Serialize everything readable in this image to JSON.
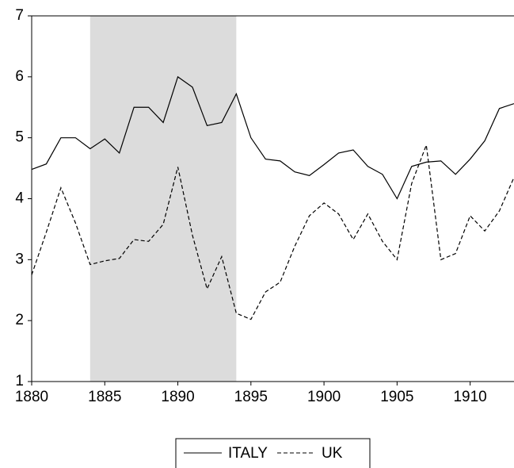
{
  "chart_data": {
    "type": "line",
    "x": [
      1880,
      1881,
      1882,
      1883,
      1884,
      1885,
      1886,
      1887,
      1888,
      1889,
      1890,
      1891,
      1892,
      1893,
      1894,
      1895,
      1896,
      1897,
      1898,
      1899,
      1900,
      1901,
      1902,
      1903,
      1904,
      1905,
      1906,
      1907,
      1908,
      1909,
      1910,
      1911,
      1912,
      1913
    ],
    "series": [
      {
        "name": "ITALY",
        "color": "#000000",
        "dash": "solid",
        "values": [
          4.48,
          4.57,
          5.0,
          5.0,
          4.82,
          4.98,
          4.75,
          5.5,
          5.5,
          5.25,
          6.0,
          5.83,
          5.2,
          5.25,
          5.72,
          5.0,
          4.65,
          4.62,
          4.44,
          4.38,
          4.56,
          4.75,
          4.8,
          4.53,
          4.4,
          4.0,
          4.53,
          4.6,
          4.62,
          4.4,
          4.65,
          4.95,
          5.48,
          5.56
        ]
      },
      {
        "name": "UK",
        "color": "#000000",
        "dash": "dashed",
        "values": [
          2.75,
          3.45,
          4.18,
          3.6,
          2.92,
          2.98,
          3.02,
          3.33,
          3.3,
          3.58,
          4.52,
          3.4,
          2.52,
          3.05,
          2.12,
          2.02,
          2.47,
          2.63,
          3.22,
          3.72,
          3.93,
          3.75,
          3.33,
          3.75,
          3.3,
          3.0,
          4.25,
          4.88,
          3.0,
          3.1,
          3.72,
          3.47,
          3.8,
          4.35
        ]
      }
    ],
    "shade": [
      1884,
      1894
    ],
    "shade_color": "#dcdcdc",
    "xlim": [
      1880,
      1913
    ],
    "xticks": [
      1880,
      1885,
      1890,
      1895,
      1900,
      1905,
      1910
    ],
    "ylim": [
      1,
      7
    ],
    "yticks": [
      1,
      2,
      3,
      4,
      5,
      6,
      7
    ],
    "legend": "bottom"
  }
}
